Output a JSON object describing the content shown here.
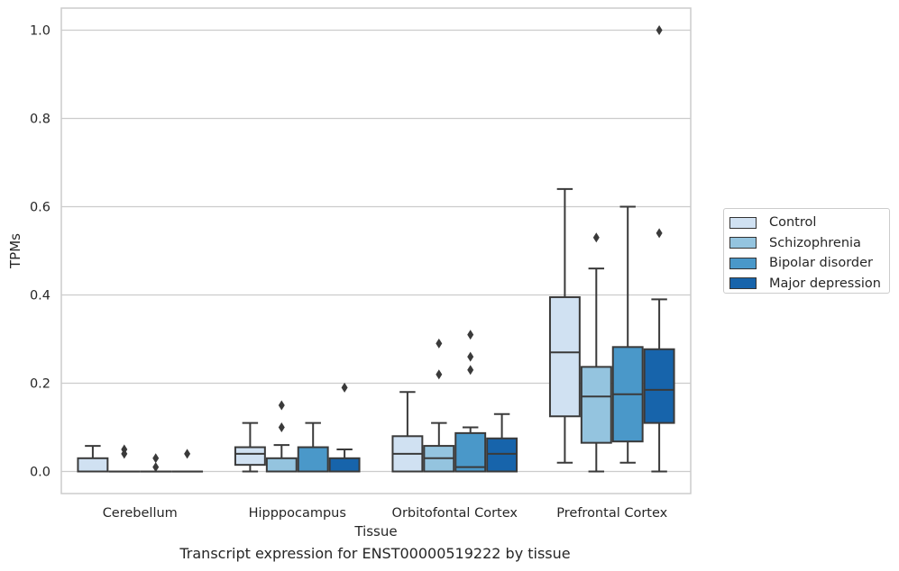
{
  "caption": "Transcript expression for ENST00000519222 by tissue",
  "chart_data": {
    "type": "box",
    "xlabel": "Tissue",
    "ylabel": "TPMs",
    "ylim": [
      -0.05,
      1.05
    ],
    "yticks": [
      "0.0",
      "0.2",
      "0.4",
      "0.6",
      "0.8",
      "1.0"
    ],
    "grid": "horizontal",
    "legend_position": "right",
    "categories": [
      "Cerebellum",
      "Hipppocampus",
      "Orbitofontal Cortex",
      "Prefrontal Cortex"
    ],
    "series": [
      {
        "name": "Control",
        "color": "#d0e1f2",
        "boxes": [
          {
            "whislo": 0.0,
            "q1": 0.0,
            "med": 0.0,
            "q3": 0.03,
            "whishi": 0.058,
            "fliers": []
          },
          {
            "whislo": 0.0,
            "q1": 0.015,
            "med": 0.04,
            "q3": 0.055,
            "whishi": 0.11,
            "fliers": []
          },
          {
            "whislo": 0.0,
            "q1": 0.0,
            "med": 0.04,
            "q3": 0.08,
            "whishi": 0.18,
            "fliers": []
          },
          {
            "whislo": 0.02,
            "q1": 0.125,
            "med": 0.27,
            "q3": 0.395,
            "whishi": 0.64,
            "fliers": []
          }
        ]
      },
      {
        "name": "Schizophrenia",
        "color": "#94c4df",
        "boxes": [
          {
            "whislo": 0.0,
            "q1": 0.0,
            "med": 0.0,
            "q3": 0.0,
            "whishi": 0.0,
            "fliers": [
              0.05,
              0.04
            ]
          },
          {
            "whislo": 0.0,
            "q1": 0.0,
            "med": 0.0,
            "q3": 0.03,
            "whishi": 0.06,
            "fliers": [
              0.15,
              0.1
            ]
          },
          {
            "whislo": 0.0,
            "q1": 0.0,
            "med": 0.03,
            "q3": 0.058,
            "whishi": 0.11,
            "fliers": [
              0.29,
              0.22
            ]
          },
          {
            "whislo": 0.0,
            "q1": 0.065,
            "med": 0.17,
            "q3": 0.237,
            "whishi": 0.46,
            "fliers": [
              0.53
            ]
          }
        ]
      },
      {
        "name": "Bipolar disorder",
        "color": "#4a98c9",
        "boxes": [
          {
            "whislo": 0.0,
            "q1": 0.0,
            "med": 0.0,
            "q3": 0.0,
            "whishi": 0.0,
            "fliers": [
              0.03,
              0.01
            ]
          },
          {
            "whislo": 0.0,
            "q1": 0.0,
            "med": 0.0,
            "q3": 0.055,
            "whishi": 0.11,
            "fliers": []
          },
          {
            "whislo": 0.0,
            "q1": 0.0,
            "med": 0.01,
            "q3": 0.087,
            "whishi": 0.1,
            "fliers": [
              0.31,
              0.26,
              0.23
            ]
          },
          {
            "whislo": 0.02,
            "q1": 0.068,
            "med": 0.175,
            "q3": 0.282,
            "whishi": 0.6,
            "fliers": []
          }
        ]
      },
      {
        "name": "Major depression",
        "color": "#1764ab",
        "boxes": [
          {
            "whislo": 0.0,
            "q1": 0.0,
            "med": 0.0,
            "q3": 0.0,
            "whishi": 0.0,
            "fliers": [
              0.04
            ]
          },
          {
            "whislo": 0.0,
            "q1": 0.0,
            "med": 0.0,
            "q3": 0.03,
            "whishi": 0.05,
            "fliers": [
              0.19
            ]
          },
          {
            "whislo": 0.0,
            "q1": 0.0,
            "med": 0.04,
            "q3": 0.075,
            "whishi": 0.13,
            "fliers": []
          },
          {
            "whislo": 0.0,
            "q1": 0.11,
            "med": 0.185,
            "q3": 0.277,
            "whishi": 0.39,
            "fliers": [
              0.54,
              1.0
            ]
          }
        ]
      }
    ]
  }
}
